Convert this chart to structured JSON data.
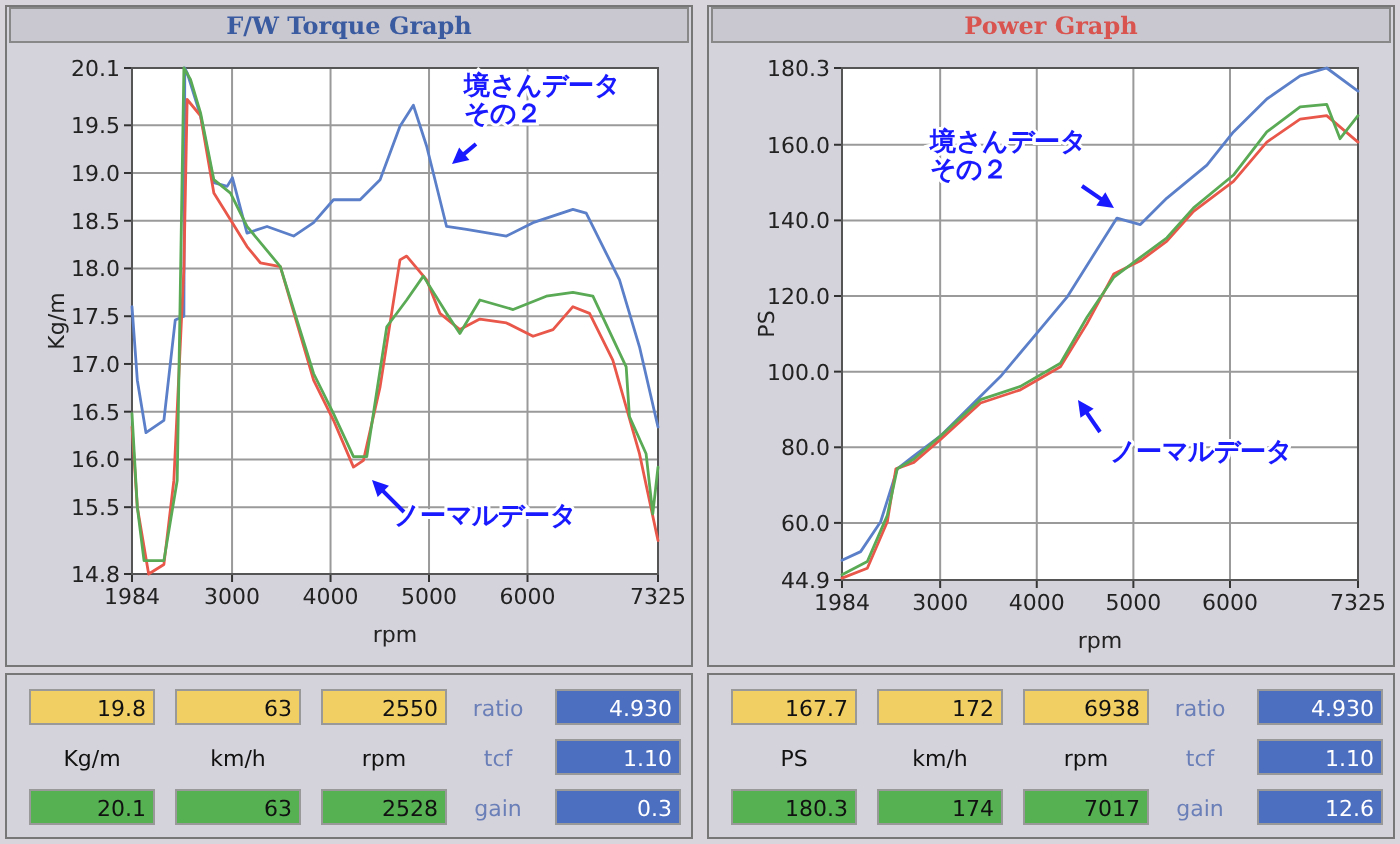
{
  "chart_data": [
    {
      "type": "line",
      "title": "F/W Torque Graph",
      "xlabel": "rpm",
      "ylabel": "Kg/m",
      "grid": true,
      "xlim": [
        1984,
        7325
      ],
      "xticks": [
        1984,
        3000,
        4000,
        5000,
        6000,
        7325
      ],
      "ylim": [
        14.8,
        20.1
      ],
      "yticks": [
        14.8,
        15.5,
        {
          "value": 16,
          "label": "16.0"
        },
        16.5,
        {
          "value": 17,
          "label": "17.0"
        },
        17.5,
        {
          "value": 18,
          "label": "18.0"
        },
        18.5,
        {
          "value": 19,
          "label": "19.0"
        },
        19.5,
        20.1
      ],
      "series": [
        {
          "color": "#5b7fc8",
          "x": [
            1984,
            2038,
            2126,
            2308,
            2423,
            2511,
            2520,
            2544,
            2680,
            2815,
            2950,
            3004,
            3152,
            3355,
            3625,
            3828,
            4030,
            4300,
            4503,
            4705,
            4841,
            4976,
            5178,
            5381,
            5786,
            6056,
            6461,
            6596,
            6934,
            7137,
            7325
          ],
          "values": [
            17.6,
            16.83,
            16.28,
            16.41,
            17.46,
            17.5,
            20.1,
            20.05,
            19.6,
            18.9,
            18.86,
            18.95,
            18.37,
            18.44,
            18.34,
            18.48,
            18.72,
            18.72,
            18.93,
            19.49,
            19.71,
            19.28,
            18.44,
            18.41,
            18.34,
            18.48,
            18.62,
            18.58,
            17.88,
            17.18,
            16.34
          ]
        },
        {
          "color": "#e8574a",
          "x": [
            1984,
            2038,
            2153,
            2308,
            2409,
            2511,
            2544,
            2680,
            2815,
            2984,
            3152,
            3287,
            3490,
            3828,
            4030,
            4233,
            4334,
            4503,
            4705,
            4773,
            4976,
            5111,
            5313,
            5516,
            5786,
            6056,
            6259,
            6461,
            6630,
            6866,
            7137,
            7325
          ],
          "values": [
            16.34,
            15.5,
            14.8,
            14.9,
            15.78,
            18.0,
            19.77,
            19.6,
            18.79,
            18.51,
            18.23,
            18.06,
            18.02,
            16.83,
            16.41,
            15.92,
            15.99,
            16.76,
            18.09,
            18.13,
            17.88,
            17.53,
            17.36,
            17.47,
            17.43,
            17.29,
            17.36,
            17.6,
            17.53,
            17.04,
            16.06,
            15.15
          ]
        },
        {
          "color": "#5aaa55",
          "x": [
            1984,
            2038,
            2106,
            2308,
            2443,
            2511,
            2578,
            2680,
            2815,
            2984,
            3152,
            3490,
            3828,
            4030,
            4233,
            4368,
            4571,
            4773,
            4942,
            5178,
            5313,
            5516,
            5854,
            6191,
            6461,
            6664,
            7002,
            7035,
            7204,
            7272,
            7325
          ],
          "values": [
            16.48,
            15.5,
            14.94,
            14.94,
            15.78,
            20.1,
            19.98,
            19.63,
            18.93,
            18.79,
            18.44,
            18.02,
            16.9,
            16.48,
            16.03,
            16.03,
            17.39,
            17.67,
            17.92,
            17.53,
            17.32,
            17.67,
            17.57,
            17.71,
            17.75,
            17.71,
            16.97,
            16.45,
            16.06,
            15.43,
            15.92
          ]
        }
      ],
      "annotations": [
        "境さんデータその２",
        "ノーマルデータ"
      ]
    },
    {
      "type": "line",
      "title": "Power Graph",
      "xlabel": "rpm",
      "ylabel": "PS",
      "grid": true,
      "xlim": [
        1984,
        7325
      ],
      "xticks": [
        1984,
        3000,
        4000,
        5000,
        6000,
        7325
      ],
      "ylim": [
        44.9,
        180.3
      ],
      "yticks": [
        44.9,
        {
          "value": 60,
          "label": "60.0"
        },
        {
          "value": 80,
          "label": "80.0"
        },
        {
          "value": 100,
          "label": "100.0"
        },
        {
          "value": 120,
          "label": "120.0"
        },
        {
          "value": 140,
          "label": "140.0"
        },
        {
          "value": 160,
          "label": "160.0"
        },
        180.3
      ],
      "series": [
        {
          "color": "#5b7fc8",
          "x": [
            1984,
            2177,
            2384,
            2556,
            2728,
            3004,
            3280,
            3624,
            3969,
            4313,
            4658,
            4830,
            5072,
            5347,
            5761,
            6036,
            6381,
            6726,
            7001,
            7325
          ],
          "values": [
            50.1,
            52.4,
            60.3,
            74.3,
            77.7,
            83.0,
            90.0,
            98.7,
            109.2,
            119.7,
            133.7,
            140.6,
            138.9,
            145.9,
            154.6,
            163.4,
            172.1,
            178.2,
            180.3,
            174.2
          ]
        },
        {
          "color": "#e8574a",
          "x": [
            1984,
            2246,
            2453,
            2542,
            2728,
            3004,
            3418,
            3831,
            4245,
            4520,
            4796,
            5072,
            5347,
            5623,
            6036,
            6381,
            6726,
            7001,
            7325
          ],
          "values": [
            45.4,
            48.0,
            60.3,
            74.3,
            76.0,
            82.1,
            91.7,
            95.2,
            101.3,
            112.7,
            125.8,
            129.3,
            134.5,
            142.4,
            150.3,
            160.7,
            166.8,
            167.7,
            160.7
          ]
        },
        {
          "color": "#5aaa55",
          "x": [
            1984,
            2246,
            2453,
            2556,
            2728,
            3004,
            3418,
            3831,
            4245,
            4520,
            4796,
            5072,
            5347,
            5623,
            6036,
            6381,
            6726,
            7001,
            7139,
            7325
          ],
          "values": [
            46.3,
            49.8,
            62.0,
            74.3,
            76.9,
            83.0,
            92.6,
            96.1,
            102.2,
            114.4,
            124.9,
            130.2,
            135.4,
            143.3,
            152.0,
            163.4,
            170.0,
            170.7,
            161.6,
            167.7
          ]
        }
      ],
      "annotations": [
        "境さんデータその２",
        "ノーマルデータ"
      ]
    },
    {
      "type": "other",
      "annotations": [
        "19.8",
        "63",
        "2550",
        "ratio",
        "4.930",
        "Kg/m",
        "km/h",
        "rpm",
        "tcf",
        "1.10",
        "20.1",
        "63",
        "2528",
        "gain",
        "0.3"
      ]
    },
    {
      "type": "other",
      "annotations": [
        "167.7",
        "172",
        "6938",
        "ratio",
        "4.930",
        "PS",
        "km/h",
        "rpm",
        "tcf",
        "1.10",
        "180.3",
        "174",
        "7017",
        "gain",
        "12.6"
      ]
    }
  ]
}
